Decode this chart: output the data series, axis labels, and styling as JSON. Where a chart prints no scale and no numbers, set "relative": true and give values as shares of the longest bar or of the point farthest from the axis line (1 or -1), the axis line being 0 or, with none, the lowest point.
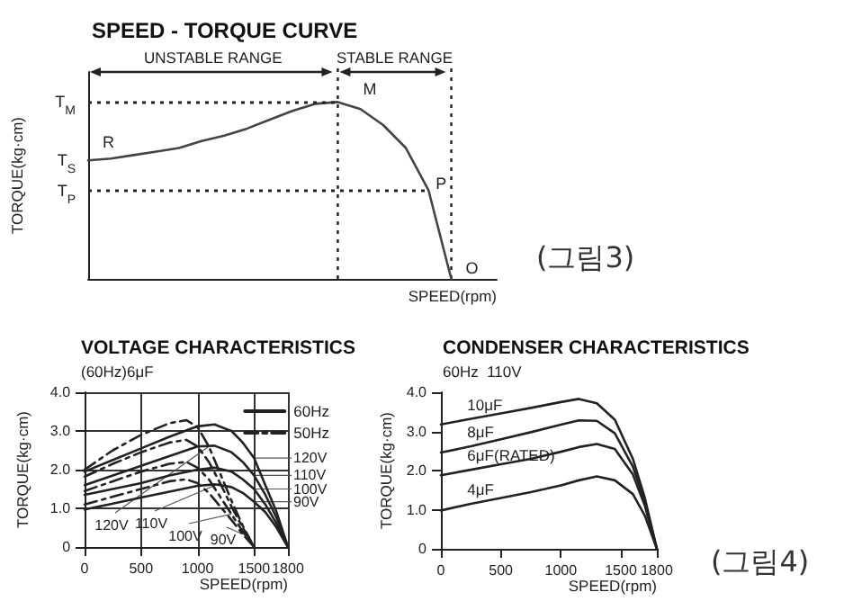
{
  "chart_data": [
    {
      "type": "line",
      "relative": true,
      "title": "SPEED - TORQUE CURVE",
      "xlabel": "SPEED(rpm)",
      "ylabel": "TORQUE(kg·cm)",
      "marker": "none",
      "legend": false,
      "categories": [
        null,
        null,
        null,
        null,
        null,
        null,
        null,
        null,
        null,
        null,
        null,
        null,
        null,
        null,
        null,
        null,
        null,
        null,
        null
      ],
      "series": [
        {
          "color": "#444444",
          "values": [
            0.67,
            0.68,
            0.7,
            0.72,
            0.74,
            0.78,
            0.81,
            0.85,
            0.9,
            0.95,
            0.99,
            1,
            0.96,
            0.87,
            0.74,
            0.5,
            0,
            null,
            null
          ]
        }
      ],
      "ref_lines": [
        {
          "axis": "y",
          "value": 1,
          "label": "T$_{M}$",
          "line_style": "dotted"
        },
        {
          "axis": "y",
          "value": 0.5,
          "label": "T$_{P}$",
          "line_style": "dotted"
        }
      ],
      "annotations": [
        "UNSTABLE RANGE",
        "STABLE RANGE",
        "T$_{S}$",
        "R",
        "M",
        "P",
        "O",
        "(그림3)"
      ]
    },
    {
      "type": "line",
      "title": "VOLTAGE CHARACTERISTICS",
      "subtitle": "(60Hz)6μF",
      "xlabel": "SPEED(rpm)",
      "ylabel": "TORQUE(kg·cm)",
      "marker": "none",
      "grid": true,
      "legend": "top right",
      "xlim": [
        0,
        1800
      ],
      "xticks": [
        0,
        500,
        1000,
        1500,
        1800
      ],
      "ylim": [
        0,
        4
      ],
      "yticks": [
        0,
        {
          "value": 1,
          "label": "1.0"
        },
        {
          "value": 2,
          "label": "2.0"
        },
        {
          "value": 3,
          "label": "3.0"
        },
        {
          "value": 4,
          "label": "4.0"
        }
      ],
      "series": [
        {
          "name": "60Hz",
          "color": "#222222",
          "line_style": "solid",
          "x": [
            0,
            250,
            500,
            750,
            1000,
            1150,
            1300,
            1400,
            1500,
            1600,
            1700,
            1800
          ],
          "values": [
            1.95,
            2.25,
            2.55,
            2.85,
            3.12,
            3.17,
            3.0,
            2.7,
            2.3,
            1.6,
            0.9,
            0
          ]
        },
        {
          "color": "#222222",
          "line_style": "solid",
          "x": [
            0,
            250,
            500,
            750,
            1000,
            1150,
            1300,
            1400,
            1500,
            1600,
            1700,
            1800
          ],
          "values": [
            1.6,
            1.85,
            2.1,
            2.35,
            2.6,
            2.62,
            2.45,
            2.2,
            1.85,
            1.35,
            0.75,
            0
          ]
        },
        {
          "color": "#222222",
          "line_style": "solid",
          "x": [
            0,
            250,
            500,
            750,
            1000,
            1150,
            1300,
            1400,
            1500,
            1600,
            1700,
            1800
          ],
          "values": [
            1.35,
            1.5,
            1.65,
            1.85,
            2.0,
            2.05,
            1.95,
            1.75,
            1.5,
            1.1,
            0.6,
            0
          ]
        },
        {
          "color": "#222222",
          "line_style": "solid",
          "x": [
            0,
            250,
            500,
            750,
            1000,
            1150,
            1300,
            1400,
            1500,
            1600,
            1700,
            1800
          ],
          "values": [
            0.97,
            1.12,
            1.28,
            1.43,
            1.58,
            1.62,
            1.55,
            1.4,
            1.17,
            0.9,
            0.5,
            0
          ]
        },
        {
          "name": "50Hz",
          "color": "#222222",
          "line_style": "dashed",
          "x": [
            0,
            250,
            500,
            750,
            900,
            1000,
            1100,
            1200,
            1300,
            1400,
            1500
          ],
          "values": [
            2.0,
            2.5,
            2.9,
            3.2,
            3.28,
            3.1,
            2.6,
            1.9,
            1.2,
            0.55,
            0
          ]
        },
        {
          "color": "#222222",
          "line_style": "dashed",
          "x": [
            0,
            250,
            500,
            750,
            900,
            1000,
            1100,
            1200,
            1300,
            1400,
            1500
          ],
          "values": [
            1.82,
            2.15,
            2.45,
            2.7,
            2.77,
            2.6,
            2.2,
            1.65,
            1.05,
            0.5,
            0
          ]
        },
        {
          "color": "#222222",
          "line_style": "dashed",
          "x": [
            0,
            250,
            500,
            750,
            900,
            1000,
            1100,
            1200,
            1300,
            1400,
            1500
          ],
          "values": [
            1.45,
            1.7,
            1.95,
            2.15,
            2.2,
            2.05,
            1.75,
            1.3,
            0.85,
            0.4,
            0
          ]
        },
        {
          "color": "#222222",
          "line_style": "dashed",
          "x": [
            0,
            250,
            500,
            750,
            900,
            1000,
            1100,
            1200,
            1300,
            1400,
            1500
          ],
          "values": [
            1.1,
            1.3,
            1.5,
            1.7,
            1.75,
            1.65,
            1.4,
            1.05,
            0.7,
            0.33,
            0
          ]
        }
      ],
      "annotations": [
        {
          "text": "120V",
          "x": 1500,
          "y": 2.3
        },
        {
          "text": "110V",
          "x": 1500,
          "y": 1.85
        },
        {
          "text": "100V",
          "x": 1500,
          "y": 1.5
        },
        {
          "text": "90V",
          "x": 1500,
          "y": 1.17
        },
        {
          "text": "120V",
          "x": 1100,
          "y": 2.6
        },
        {
          "text": "110V",
          "x": 1200,
          "y": 1.65
        },
        {
          "text": "100V",
          "x": 1300,
          "y": 0.85
        },
        {
          "text": "90V",
          "x": 1400,
          "y": 0.33
        }
      ]
    },
    {
      "type": "line",
      "title": "CONDENSER CHARACTERISTICS",
      "subtitle": "60Hz  110V",
      "xlabel": "SPEED(rpm)",
      "ylabel": "TORQUE(kg·cm)",
      "marker": "none",
      "legend": false,
      "xlim": [
        0,
        1800
      ],
      "xticks": [
        0,
        500,
        1000,
        1500,
        1800
      ],
      "ylim": [
        0,
        4
      ],
      "yticks": [
        0,
        {
          "value": 1,
          "label": "1.0"
        },
        {
          "value": 2,
          "label": "2.0"
        },
        {
          "value": 3,
          "label": "3.0"
        },
        {
          "value": 4,
          "label": "4.0"
        }
      ],
      "x": [
        0,
        250,
        500,
        750,
        1000,
        1150,
        1300,
        1450,
        1600,
        1700,
        1800
      ],
      "series": [
        {
          "name": "10μF",
          "color": "#222222",
          "values": [
            3.18,
            3.32,
            3.46,
            3.6,
            3.75,
            3.83,
            3.72,
            3.3,
            2.3,
            1.3,
            0
          ]
        },
        {
          "name": "8μF",
          "color": "#222222",
          "values": [
            2.46,
            2.62,
            2.8,
            2.98,
            3.17,
            3.28,
            3.27,
            2.95,
            2.1,
            1.2,
            0
          ]
        },
        {
          "name": "6μF(RATED)",
          "color": "#222222",
          "values": [
            1.88,
            2.02,
            2.16,
            2.3,
            2.48,
            2.6,
            2.68,
            2.55,
            1.9,
            1.1,
            0
          ]
        },
        {
          "name": "4μF",
          "color": "#222222",
          "values": [
            0.98,
            1.15,
            1.3,
            1.45,
            1.62,
            1.75,
            1.85,
            1.75,
            1.4,
            0.85,
            0
          ]
        }
      ],
      "annotations": [
        "(그림4)"
      ]
    }
  ]
}
